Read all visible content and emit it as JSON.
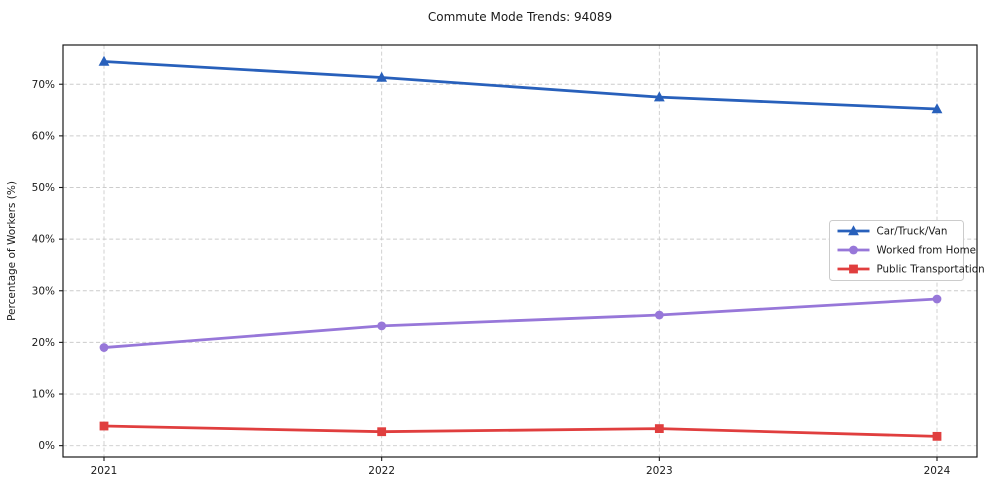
{
  "title": "Commute Mode Trends: 94089",
  "chart_data": {
    "type": "line",
    "title": "Commute Mode Trends: 94089",
    "xlabel": "",
    "ylabel": "Percentage of Workers (%)",
    "categories": [
      "2021",
      "2022",
      "2023",
      "2024"
    ],
    "series": [
      {
        "name": "Car/Truck/Van",
        "marker": "triangle",
        "color": "#2860bb",
        "values": [
          74.4,
          71.3,
          67.5,
          65.2
        ]
      },
      {
        "name": "Worked from Home",
        "marker": "circle",
        "color": "#9777d9",
        "values": [
          19.0,
          23.2,
          25.3,
          28.4
        ]
      },
      {
        "name": "Public Transportation",
        "marker": "square",
        "color": "#e03e3e",
        "values": [
          3.8,
          2.7,
          3.3,
          1.8
        ]
      }
    ],
    "ylim": [
      -2.2,
      77.6
    ],
    "ytick_values": [
      0,
      10,
      20,
      30,
      40,
      50,
      60,
      70
    ],
    "ytick_labels": [
      "0%",
      "10%",
      "20%",
      "30%",
      "40%",
      "50%",
      "60%",
      "70%"
    ],
    "grid": true,
    "grid_style": "dashed",
    "legend_position": "center-right",
    "colors": {
      "background": "#ffffff",
      "axis": "#1a1a1a",
      "grid": "#cccccc",
      "legend_border": "#cccccc",
      "legend_background": "#ffffff"
    }
  }
}
